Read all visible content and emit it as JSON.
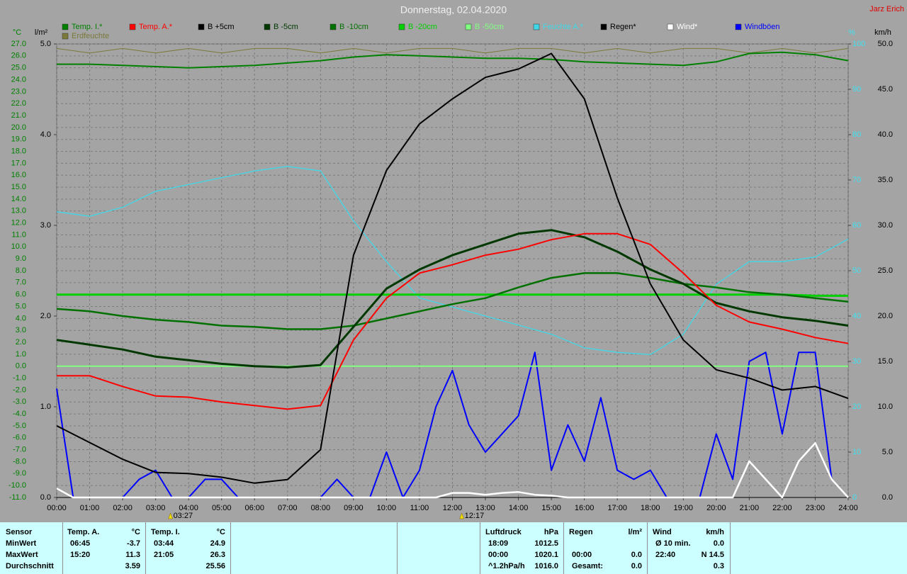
{
  "chart_data": {
    "type": "line",
    "title": "Donnerstag, 02.04.2020",
    "author": "Jarz Erich",
    "ylabel": "°C",
    "y2label": "l/m²",
    "y3label": "%",
    "y4label": "km/h",
    "xlim": [
      0,
      24
    ],
    "xticks": [
      {
        "value": 0,
        "label": "00:00"
      },
      {
        "value": 1,
        "label": "01:00"
      },
      {
        "value": 2,
        "label": "02:00"
      },
      {
        "value": 3,
        "label": "03:00"
      },
      {
        "value": 4,
        "label": "04:00"
      },
      {
        "value": 5,
        "label": "05:00"
      },
      {
        "value": 6,
        "label": "06:00"
      },
      {
        "value": 7,
        "label": "07:00"
      },
      {
        "value": 8,
        "label": "08:00"
      },
      {
        "value": 9,
        "label": "09:00"
      },
      {
        "value": 10,
        "label": "10:00"
      },
      {
        "value": 11,
        "label": "11:00"
      },
      {
        "value": 12,
        "label": "12:00"
      },
      {
        "value": 13,
        "label": "13:00"
      },
      {
        "value": 14,
        "label": "14:00"
      },
      {
        "value": 15,
        "label": "15:00"
      },
      {
        "value": 16,
        "label": "16:00"
      },
      {
        "value": 17,
        "label": "17:00"
      },
      {
        "value": 18,
        "label": "18:00"
      },
      {
        "value": 19,
        "label": "19:00"
      },
      {
        "value": 20,
        "label": "20:00"
      },
      {
        "value": 21,
        "label": "21:00"
      },
      {
        "value": 22,
        "label": "22:00"
      },
      {
        "value": 23,
        "label": "23:00"
      },
      {
        "value": 24,
        "label": "24:00"
      }
    ],
    "ylim": [
      -11,
      27
    ],
    "yticks": [
      {
        "value": -11,
        "label": "-11.0"
      },
      {
        "value": -10,
        "label": "-10.0"
      },
      {
        "value": -9,
        "label": "-9.0"
      },
      {
        "value": -8,
        "label": "-8.0"
      },
      {
        "value": -7,
        "label": "-7.0"
      },
      {
        "value": -6,
        "label": "-6.0"
      },
      {
        "value": -5,
        "label": "-5.0"
      },
      {
        "value": -4,
        "label": "-4.0"
      },
      {
        "value": -3,
        "label": "-3.0"
      },
      {
        "value": -2,
        "label": "-2.0"
      },
      {
        "value": -1,
        "label": "-1.0"
      },
      {
        "value": 0,
        "label": "0.0"
      },
      {
        "value": 1,
        "label": "1.0"
      },
      {
        "value": 2,
        "label": "2.0"
      },
      {
        "value": 3,
        "label": "3.0"
      },
      {
        "value": 4,
        "label": "4.0"
      },
      {
        "value": 5,
        "label": "5.0"
      },
      {
        "value": 6,
        "label": "6.0"
      },
      {
        "value": 7,
        "label": "7.0"
      },
      {
        "value": 8,
        "label": "8.0"
      },
      {
        "value": 9,
        "label": "9.0"
      },
      {
        "value": 10,
        "label": "10.0"
      },
      {
        "value": 11,
        "label": "11.0"
      },
      {
        "value": 12,
        "label": "12.0"
      },
      {
        "value": 13,
        "label": "13.0"
      },
      {
        "value": 14,
        "label": "14.0"
      },
      {
        "value": 15,
        "label": "15.0"
      },
      {
        "value": 16,
        "label": "16.0"
      },
      {
        "value": 17,
        "label": "17.0"
      },
      {
        "value": 18,
        "label": "18.0"
      },
      {
        "value": 19,
        "label": "19.0"
      },
      {
        "value": 20,
        "label": "20.0"
      },
      {
        "value": 21,
        "label": "21.0"
      },
      {
        "value": 22,
        "label": "22.0"
      },
      {
        "value": 23,
        "label": "23.0"
      },
      {
        "value": 24,
        "label": "24.0"
      },
      {
        "value": 25,
        "label": "25.0"
      },
      {
        "value": 26,
        "label": "26.0"
      },
      {
        "value": 27,
        "label": "27.0"
      }
    ],
    "y2lim": [
      0,
      5
    ],
    "y2ticks": [
      {
        "value": 0,
        "label": "0.0"
      },
      {
        "value": 1,
        "label": "1.0"
      },
      {
        "value": 2,
        "label": "2.0"
      },
      {
        "value": 3,
        "label": "3.0"
      },
      {
        "value": 4,
        "label": "4.0"
      },
      {
        "value": 5,
        "label": "5.0"
      }
    ],
    "y3lim": [
      0,
      100
    ],
    "y3ticks": [
      0,
      10,
      20,
      30,
      40,
      50,
      60,
      70,
      80,
      90,
      100
    ],
    "y4lim": [
      0,
      50
    ],
    "y4ticks": [
      {
        "value": 0,
        "label": "0.0"
      },
      {
        "value": 5,
        "label": "5.0"
      },
      {
        "value": 10,
        "label": "10.0"
      },
      {
        "value": 15,
        "label": "15.0"
      },
      {
        "value": 20,
        "label": "20.0"
      },
      {
        "value": 25,
        "label": "25.0"
      },
      {
        "value": 30,
        "label": "30.0"
      },
      {
        "value": 35,
        "label": "35.0"
      },
      {
        "value": 40,
        "label": "40.0"
      },
      {
        "value": 45,
        "label": "45.0"
      },
      {
        "value": 50,
        "label": "50.0"
      }
    ],
    "grid": true,
    "series": [
      {
        "name": "Temp. I.*",
        "color": "#008000",
        "axis": "y",
        "x": [
          0,
          1,
          2,
          3,
          4,
          5,
          6,
          7,
          8,
          9,
          10,
          11,
          12,
          13,
          14,
          15,
          16,
          17,
          18,
          19,
          20,
          21,
          22,
          23,
          24
        ],
        "values": [
          25.3,
          25.3,
          25.2,
          25.1,
          25.0,
          25.1,
          25.2,
          25.4,
          25.6,
          25.9,
          26.1,
          26.0,
          25.9,
          25.8,
          25.8,
          25.7,
          25.5,
          25.4,
          25.3,
          25.2,
          25.5,
          26.2,
          26.3,
          26.1,
          25.6
        ]
      },
      {
        "name": "Temp. A.*",
        "color": "#ff0000",
        "axis": "y",
        "x": [
          0,
          1,
          2,
          3,
          4,
          5,
          6,
          7,
          8,
          9,
          10,
          11,
          12,
          13,
          14,
          15,
          16,
          17,
          18,
          19,
          20,
          21,
          22,
          23,
          24
        ],
        "values": [
          -0.8,
          -0.8,
          -1.7,
          -2.5,
          -2.6,
          -3.0,
          -3.3,
          -3.6,
          -3.3,
          2.2,
          5.7,
          7.8,
          8.5,
          9.3,
          9.8,
          10.6,
          11.1,
          11.1,
          10.2,
          7.8,
          5.1,
          3.7,
          3.1,
          2.4,
          1.9
        ]
      },
      {
        "name": "B +5cm",
        "color": "#000000",
        "axis": "y",
        "x": [
          0,
          1,
          2,
          3,
          4,
          5,
          6,
          7,
          8,
          9,
          10,
          11,
          12,
          13,
          14,
          15,
          16,
          17,
          18,
          19,
          20,
          21,
          22,
          23,
          24
        ],
        "values": [
          -5.0,
          -6.4,
          -7.8,
          -8.9,
          -9.0,
          -9.3,
          -9.8,
          -9.5,
          -7.0,
          9.3,
          16.4,
          20.3,
          22.4,
          24.2,
          24.9,
          26.2,
          22.4,
          14.1,
          6.9,
          2.2,
          -0.3,
          -1.0,
          -2.0,
          -1.7,
          -2.7
        ]
      },
      {
        "name": "B -5cm",
        "color": "#003800",
        "axis": "y",
        "x": [
          0,
          1,
          2,
          3,
          4,
          5,
          6,
          7,
          8,
          9,
          10,
          11,
          12,
          13,
          14,
          15,
          16,
          17,
          18,
          19,
          20,
          21,
          22,
          23,
          24
        ],
        "values": [
          2.2,
          1.8,
          1.4,
          0.8,
          0.5,
          0.2,
          0.0,
          -0.1,
          0.1,
          3.3,
          6.5,
          8.1,
          9.3,
          10.2,
          11.1,
          11.4,
          10.8,
          9.6,
          8.1,
          6.9,
          5.3,
          4.6,
          4.1,
          3.8,
          3.4
        ]
      },
      {
        "name": "B -10cm",
        "color": "#007000",
        "axis": "y",
        "x": [
          0,
          1,
          2,
          3,
          4,
          5,
          6,
          7,
          8,
          9,
          10,
          11,
          12,
          13,
          14,
          15,
          16,
          17,
          18,
          19,
          20,
          21,
          22,
          23,
          24
        ],
        "values": [
          4.8,
          4.6,
          4.2,
          3.9,
          3.7,
          3.4,
          3.3,
          3.1,
          3.1,
          3.4,
          4.0,
          4.6,
          5.2,
          5.7,
          6.6,
          7.4,
          7.8,
          7.8,
          7.4,
          6.9,
          6.6,
          6.2,
          6.0,
          5.7,
          5.4
        ]
      },
      {
        "name": "B -20cm",
        "color": "#00d000",
        "axis": "y",
        "x": [
          0,
          1,
          2,
          3,
          4,
          5,
          6,
          7,
          8,
          9,
          10,
          11,
          12,
          13,
          14,
          15,
          16,
          17,
          18,
          19,
          20,
          21,
          22,
          23,
          24
        ],
        "values": [
          6.0,
          6.0,
          6.0,
          6.0,
          6.0,
          6.0,
          6.0,
          6.0,
          6.0,
          6.0,
          6.0,
          6.0,
          6.0,
          6.0,
          6.0,
          6.0,
          6.0,
          6.0,
          6.0,
          6.0,
          6.0,
          6.0,
          6.0,
          5.9,
          5.9
        ]
      },
      {
        "name": "B -50cm",
        "color": "#80ff80",
        "axis": "y",
        "x": [
          0,
          1,
          2,
          3,
          4,
          5,
          6,
          7,
          8,
          9,
          10,
          11,
          12,
          13,
          14,
          15,
          16,
          17,
          18,
          19,
          20,
          21,
          22,
          23,
          24
        ],
        "values": [
          0.0,
          0.0,
          0.0,
          0.0,
          0.0,
          0.0,
          0.0,
          0.0,
          0.0,
          0.0,
          0.0,
          0.0,
          0.0,
          0.0,
          0.0,
          0.0,
          0.0,
          0.0,
          0.0,
          0.0,
          0.0,
          0.0,
          0.0,
          0.0,
          0.0
        ]
      },
      {
        "name": "Feuchte A.*",
        "color": "#40d8e8",
        "axis": "y3",
        "x": [
          0,
          1,
          2,
          3,
          4,
          5,
          6,
          7,
          8,
          9,
          10,
          11,
          12,
          13,
          14,
          15,
          16,
          17,
          18,
          19,
          20,
          21,
          22,
          23,
          24
        ],
        "values": [
          63,
          62,
          64,
          67.5,
          69,
          70.5,
          72,
          73,
          72,
          61,
          52,
          44,
          42,
          40,
          38,
          36,
          33,
          32,
          31.5,
          36,
          47,
          52,
          52,
          53,
          57
        ]
      },
      {
        "name": "Regen*",
        "color": "#000000",
        "axis": "y2",
        "x": [
          0,
          1,
          2,
          3,
          4,
          5,
          6,
          7,
          8,
          9,
          10,
          11,
          12,
          13,
          14,
          15,
          16,
          17,
          18,
          19,
          20,
          21,
          22,
          23,
          24
        ],
        "values": [
          0,
          0,
          0,
          0,
          0,
          0,
          0,
          0,
          0,
          0,
          0,
          0,
          0,
          0,
          0,
          0,
          0,
          0,
          0,
          0,
          0,
          0,
          0,
          0,
          0
        ]
      },
      {
        "name": "Wind*",
        "color": "#ffffff",
        "axis": "y4",
        "x": [
          0,
          0.5,
          1,
          1.5,
          2,
          2.5,
          3,
          3.5,
          4,
          4.5,
          5,
          5.5,
          6,
          6.5,
          7,
          7.5,
          8,
          8.5,
          9,
          9.5,
          10,
          10.5,
          11,
          11.5,
          12,
          12.5,
          13,
          13.5,
          14,
          14.5,
          15,
          15.5,
          16,
          16.5,
          17,
          17.5,
          18,
          18.5,
          19,
          19.5,
          20,
          20.5,
          21,
          21.5,
          22,
          22.5,
          23,
          23.5,
          24
        ],
        "values": [
          1,
          0,
          0,
          0,
          0,
          0,
          0,
          0,
          0,
          0,
          0,
          0,
          0,
          0,
          0,
          0,
          0,
          0,
          0,
          0,
          0,
          0,
          0,
          0,
          0.5,
          0.5,
          0.3,
          0.5,
          0.6,
          0.3,
          0.2,
          0,
          0,
          0,
          0,
          0,
          0,
          0,
          0,
          0,
          0,
          0,
          4,
          2,
          0,
          4,
          6,
          2,
          0
        ]
      },
      {
        "name": "Windböen",
        "color": "#0000ff",
        "axis": "y4",
        "x": [
          0,
          0.5,
          1,
          1.5,
          2,
          2.5,
          3,
          3.5,
          4,
          4.5,
          5,
          5.5,
          6,
          6.5,
          7,
          7.5,
          8,
          8.5,
          9,
          9.5,
          10,
          10.5,
          11,
          11.5,
          12,
          12.5,
          13,
          13.5,
          14,
          14.5,
          15,
          15.5,
          16,
          16.5,
          17,
          17.5,
          18,
          18.5,
          19,
          19.5,
          20,
          20.5,
          21,
          21.5,
          22,
          22.5,
          23,
          23.5,
          24
        ],
        "values": [
          12,
          0,
          0,
          0,
          0,
          2,
          3,
          0,
          0,
          2,
          2,
          0,
          0,
          0,
          0,
          0,
          0,
          2,
          0,
          0,
          5,
          0,
          3,
          10,
          14,
          8,
          5,
          7,
          9,
          16,
          3,
          8,
          4,
          11,
          3,
          2,
          3,
          0,
          0,
          0,
          7,
          2,
          15,
          16,
          7,
          16,
          16,
          2,
          0
        ]
      },
      {
        "name": "Erdfeuchte",
        "color": "#7a7a3a",
        "axis": "y3",
        "x": [
          0,
          1,
          2,
          3,
          4,
          5,
          6,
          7,
          8,
          9,
          10,
          11,
          12,
          13,
          14,
          15,
          16,
          17,
          18,
          19,
          20,
          21,
          22,
          23,
          24
        ],
        "values": [
          99,
          98,
          99,
          98,
          99,
          98,
          99,
          99,
          98,
          99,
          98,
          99,
          99,
          98,
          99,
          99,
          98,
          99,
          98,
          99,
          99,
          98,
          99,
          98,
          99
        ]
      }
    ],
    "annotations": [
      {
        "x": 3.45,
        "label": "03:27"
      },
      {
        "x": 12.283,
        "label": "12:17"
      }
    ]
  },
  "stats": {
    "header": "Sensor",
    "row_labels": [
      "MinWert",
      "MaxWert",
      "Durchschnitt"
    ],
    "groups": [
      {
        "name": "Temp. A.",
        "unit": "°C",
        "min": {
          "time": "06:45",
          "value": "-3.7"
        },
        "max": {
          "time": "15:20",
          "value": "11.3"
        },
        "avg": {
          "value": "3.59"
        }
      },
      {
        "name": "Temp. I.",
        "unit": "°C",
        "min": {
          "time": "03:44",
          "value": "24.9"
        },
        "max": {
          "time": "21:05",
          "value": "26.3"
        },
        "avg": {
          "value": "25.56"
        }
      },
      {
        "name": "Luftdruck",
        "unit": "hPa",
        "min": {
          "time": "18:09",
          "value": "1012.5"
        },
        "max": {
          "time": "00:00",
          "value": "1020.1"
        },
        "avg": {
          "time": "^1.2hPa/h",
          "value": "1016.0"
        }
      },
      {
        "name": "Regen",
        "unit": "l/m²",
        "max": {
          "time": "00:00",
          "value": "0.0"
        },
        "avg": {
          "time": "Gesamt:",
          "value": "0.0"
        }
      },
      {
        "name": "Wind",
        "unit": "km/h",
        "min": {
          "time": "Ø 10 min.",
          "value": "0.0"
        },
        "max": {
          "time": "22:40",
          "value": "N 14.5"
        },
        "avg": {
          "value": "0.3"
        }
      }
    ]
  }
}
